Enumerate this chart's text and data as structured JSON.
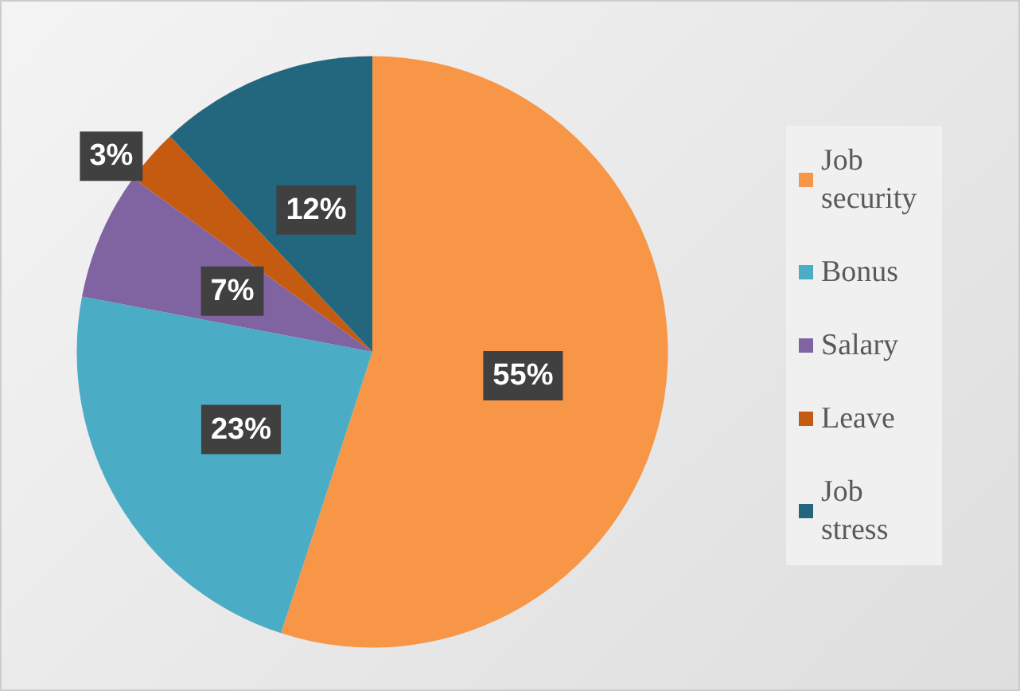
{
  "chart_data": {
    "type": "pie",
    "categories": [
      "Job security",
      "Bonus",
      "Salary",
      "Leave",
      "Job stress"
    ],
    "values": [
      55,
      23,
      7,
      3,
      12
    ],
    "colors": [
      "#f79646",
      "#4bacc6",
      "#8064a2",
      "#c55a11",
      "#23677f"
    ],
    "value_labels": [
      "55%",
      "23%",
      "7%",
      "3%",
      "12%"
    ],
    "legend": "right"
  }
}
